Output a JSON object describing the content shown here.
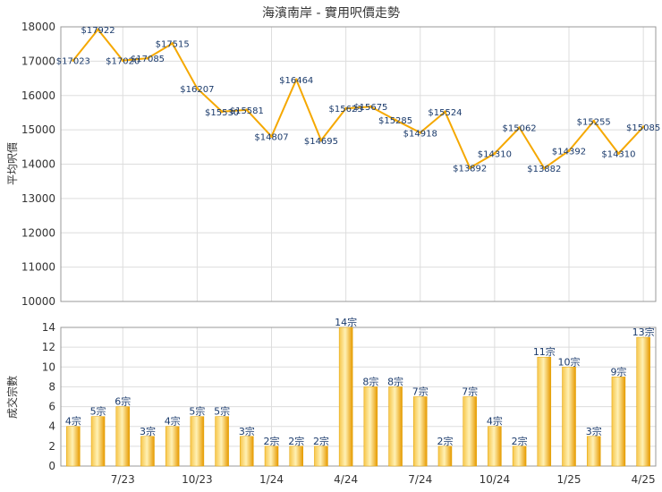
{
  "chart_data": [
    {
      "type": "line",
      "title": "海濱南岸 - 實用呎價走勢",
      "ylabel": "平均呎價",
      "ylim": [
        10000,
        18000
      ],
      "yticks": [
        10000,
        11000,
        12000,
        13000,
        14000,
        15000,
        16000,
        17000,
        18000
      ],
      "values": [
        17023,
        17922,
        17020,
        17085,
        17515,
        16207,
        15530,
        15581,
        14807,
        16464,
        14695,
        15623,
        15675,
        15285,
        14918,
        15524,
        13892,
        14310,
        15062,
        13882,
        14392,
        15255,
        14310,
        15085
      ],
      "point_labels": [
        "$17023",
        "$17922",
        "$17020",
        "$17085",
        "$17515",
        "$16207",
        "$15530",
        "$15581",
        "$14807",
        "$16464",
        "$14695",
        "$15623",
        "$15675",
        "$15285",
        "$14918",
        "$15524",
        "$13892",
        "$14310",
        "$15062",
        "$13882",
        "$14392",
        "$15255",
        "$14310",
        "$15085"
      ],
      "color": "#f5a800",
      "grid": true
    },
    {
      "type": "bar",
      "ylabel": "成交宗數",
      "ylim": [
        0,
        14
      ],
      "yticks": [
        0,
        2,
        4,
        6,
        8,
        10,
        12,
        14
      ],
      "values": [
        4,
        5,
        6,
        3,
        4,
        5,
        5,
        3,
        2,
        2,
        2,
        14,
        8,
        8,
        7,
        2,
        7,
        4,
        2,
        11,
        10,
        3,
        9,
        13
      ],
      "bar_labels": [
        "4宗",
        "5宗",
        "6宗",
        "3宗",
        "4宗",
        "5宗",
        "5宗",
        "3宗",
        "2宗",
        "2宗",
        "2宗",
        "14宗",
        "8宗",
        "8宗",
        "7宗",
        "2宗",
        "7宗",
        "4宗",
        "2宗",
        "11宗",
        "10宗",
        "3宗",
        "9宗",
        "13宗"
      ],
      "x_tick_labels": [
        {
          "index": 2,
          "label": "7/23"
        },
        {
          "index": 5,
          "label": "10/23"
        },
        {
          "index": 8,
          "label": "1/24"
        },
        {
          "index": 11,
          "label": "4/24"
        },
        {
          "index": 14,
          "label": "7/24"
        },
        {
          "index": 17,
          "label": "10/24"
        },
        {
          "index": 20,
          "label": "1/25"
        },
        {
          "index": 23,
          "label": "4/25"
        }
      ],
      "color": "#f5a800",
      "grid": true
    }
  ]
}
